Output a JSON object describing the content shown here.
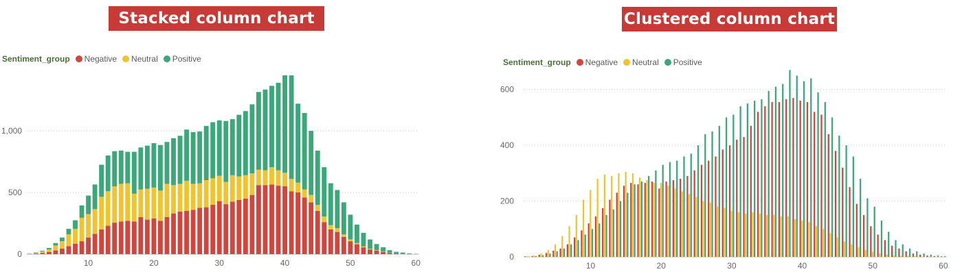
{
  "titles": {
    "left": "Stacked column chart",
    "right": "Clustered column chart"
  },
  "legend": {
    "title": "Sentiment_group",
    "items": [
      {
        "label": "Negative",
        "color": "#d2453d"
      },
      {
        "label": "Neutral",
        "color": "#f0c430"
      },
      {
        "label": "Positive",
        "color": "#3ba879"
      }
    ]
  },
  "chart_data": [
    {
      "type": "bar",
      "stacked": true,
      "title": "Stacked column chart",
      "x": [
        1,
        2,
        3,
        4,
        5,
        6,
        7,
        8,
        9,
        10,
        11,
        12,
        13,
        14,
        15,
        16,
        17,
        18,
        19,
        20,
        21,
        22,
        23,
        24,
        25,
        26,
        27,
        28,
        29,
        30,
        31,
        32,
        33,
        34,
        35,
        36,
        37,
        38,
        39,
        40,
        41,
        42,
        43,
        44,
        45,
        46,
        47,
        48,
        49,
        50,
        51,
        52,
        53,
        54,
        55,
        56,
        57,
        58,
        59,
        60
      ],
      "x_ticks": [
        "10",
        "20",
        "30",
        "40",
        "50",
        "60"
      ],
      "y_ticks": [
        "0",
        "500",
        "1,000"
      ],
      "ylim": [
        0,
        1400
      ],
      "grid": true,
      "legend_position": "top-left",
      "series": [
        {
          "name": "Negative",
          "values": [
            2,
            5,
            10,
            18,
            30,
            45,
            65,
            85,
            105,
            135,
            165,
            200,
            230,
            255,
            265,
            270,
            265,
            300,
            280,
            290,
            270,
            300,
            330,
            345,
            350,
            360,
            375,
            380,
            400,
            430,
            405,
            425,
            440,
            450,
            480,
            560,
            560,
            565,
            555,
            550,
            510,
            500,
            460,
            420,
            350,
            260,
            200,
            180,
            140,
            105,
            80,
            55,
            38,
            28,
            18,
            10,
            6,
            4,
            2,
            1
          ]
        },
        {
          "name": "Neutral",
          "values": [
            2,
            6,
            12,
            20,
            40,
            60,
            95,
            120,
            190,
            190,
            200,
            265,
            280,
            295,
            305,
            305,
            225,
            225,
            250,
            250,
            245,
            270,
            230,
            225,
            245,
            210,
            200,
            220,
            215,
            205,
            180,
            215,
            190,
            190,
            175,
            125,
            120,
            140,
            125,
            110,
            100,
            80,
            65,
            60,
            50,
            45,
            35,
            30,
            20,
            15,
            10,
            8,
            6,
            4,
            3,
            2,
            1,
            1,
            0,
            0
          ]
        },
        {
          "name": "Positive",
          "values": [
            1,
            3,
            5,
            12,
            20,
            30,
            45,
            70,
            100,
            150,
            200,
            260,
            290,
            285,
            270,
            255,
            340,
            340,
            350,
            360,
            370,
            340,
            380,
            390,
            415,
            420,
            420,
            440,
            455,
            450,
            495,
            455,
            500,
            520,
            560,
            630,
            655,
            660,
            710,
            790,
            840,
            640,
            620,
            520,
            440,
            400,
            340,
            310,
            260,
            200,
            150,
            110,
            75,
            50,
            35,
            20,
            12,
            8,
            4,
            2
          ]
        }
      ]
    },
    {
      "type": "bar",
      "stacked": false,
      "title": "Clustered column chart",
      "x": [
        1,
        2,
        3,
        4,
        5,
        6,
        7,
        8,
        9,
        10,
        11,
        12,
        13,
        14,
        15,
        16,
        17,
        18,
        19,
        20,
        21,
        22,
        23,
        24,
        25,
        26,
        27,
        28,
        29,
        30,
        31,
        32,
        33,
        34,
        35,
        36,
        37,
        38,
        39,
        40,
        41,
        42,
        43,
        44,
        45,
        46,
        47,
        48,
        49,
        50,
        51,
        52,
        53,
        54,
        55,
        56,
        57,
        58,
        59,
        60
      ],
      "x_ticks": [
        "10",
        "20",
        "30",
        "40",
        "50",
        "60"
      ],
      "y_ticks": [
        "0",
        "200",
        "400",
        "600"
      ],
      "ylim": [
        0,
        700
      ],
      "grid": true,
      "legend_position": "top-left",
      "series": [
        {
          "name": "Negative",
          "values": [
            2,
            3,
            8,
            14,
            22,
            30,
            45,
            70,
            95,
            120,
            145,
            175,
            205,
            230,
            255,
            265,
            260,
            265,
            270,
            245,
            270,
            275,
            280,
            290,
            310,
            330,
            345,
            360,
            385,
            400,
            420,
            430,
            470,
            520,
            540,
            555,
            555,
            565,
            570,
            560,
            555,
            520,
            510,
            440,
            380,
            320,
            250,
            190,
            150,
            110,
            80,
            60,
            40,
            30,
            20,
            12,
            8,
            5,
            3,
            2
          ]
        },
        {
          "name": "Neutral",
          "values": [
            2,
            5,
            12,
            25,
            45,
            75,
            110,
            150,
            205,
            240,
            280,
            295,
            290,
            300,
            305,
            300,
            285,
            275,
            265,
            265,
            255,
            245,
            235,
            225,
            215,
            200,
            195,
            180,
            175,
            165,
            160,
            155,
            160,
            155,
            150,
            150,
            145,
            145,
            135,
            130,
            125,
            110,
            100,
            85,
            70,
            55,
            45,
            35,
            25,
            18,
            12,
            8,
            5,
            4,
            3,
            2,
            1,
            1,
            0,
            0
          ]
        },
        {
          "name": "Positive",
          "values": [
            1,
            3,
            6,
            12,
            20,
            30,
            45,
            60,
            80,
            100,
            120,
            150,
            170,
            200,
            230,
            260,
            270,
            290,
            310,
            330,
            340,
            345,
            360,
            370,
            400,
            440,
            450,
            470,
            500,
            510,
            540,
            550,
            560,
            565,
            595,
            610,
            620,
            670,
            650,
            630,
            640,
            590,
            555,
            500,
            435,
            400,
            360,
            280,
            210,
            180,
            130,
            90,
            60,
            45,
            30,
            20,
            12,
            8,
            5,
            3
          ]
        }
      ]
    }
  ]
}
